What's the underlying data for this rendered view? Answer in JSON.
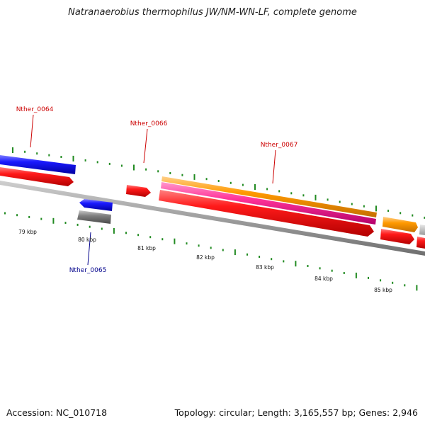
{
  "title": "Natranaerobius thermophilus JW/NM-WN-LF, complete genome",
  "accession_text": "Accession: NC_010718",
  "summary_text": "Topology: circular; Length: 3,165,557 bp; Genes: 2,946",
  "colors": {
    "forward_label": "#cc0000",
    "reverse_label": "#00008b",
    "cds": "#ff0000",
    "gene_forward": "#0000ee",
    "orange_feature": "#ff9900",
    "pink_feature": "#ff3399",
    "grey_feature": "#777777",
    "backbone": "#999999",
    "tick": "#228b22"
  },
  "gene_labels": [
    {
      "text": "Nther_0064",
      "strand": "forward"
    },
    {
      "text": "Nther_0066",
      "strand": "forward"
    },
    {
      "text": "Nther_0067",
      "strand": "forward"
    },
    {
      "text": "Nther_0065",
      "strand": "reverse"
    }
  ],
  "scale_labels": [
    "79 kbp",
    "80 kbp",
    "81 kbp",
    "82 kbp",
    "83 kbp",
    "84 kbp",
    "85 kbp"
  ]
}
